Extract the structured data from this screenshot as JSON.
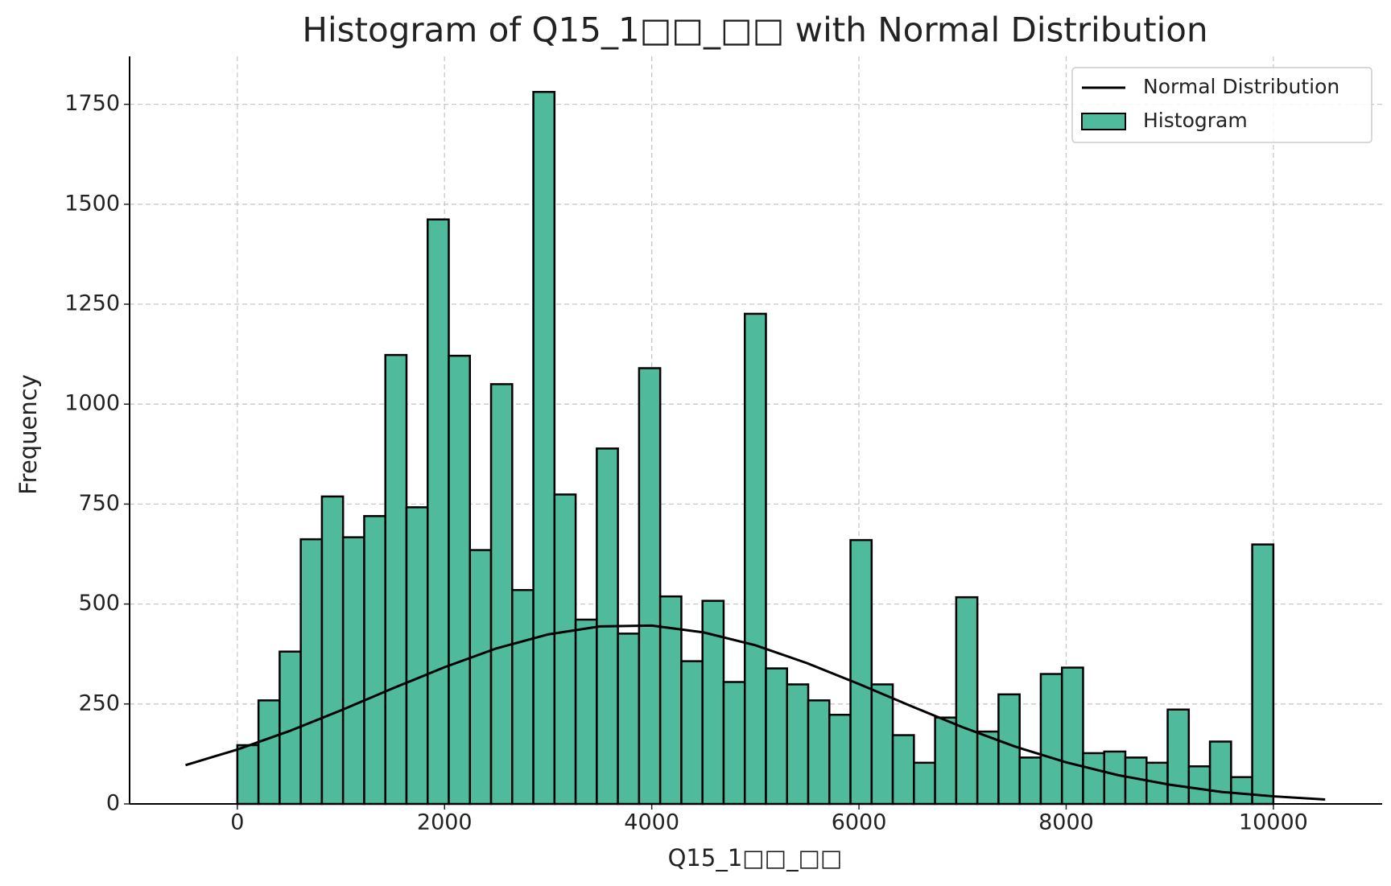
{
  "chart_data": {
    "type": "histogram",
    "title": "Histogram of Q15_1□□_□□ with Normal Distribution",
    "x_label": "Q15_1□□_□□",
    "y_label": "Frequency",
    "xlim": [
      -1040,
      11050
    ],
    "ylim": [
      0,
      1870
    ],
    "xticks": [
      0,
      2000,
      4000,
      6000,
      8000,
      10000
    ],
    "yticks": [
      0,
      250,
      500,
      750,
      1000,
      1250,
      1500,
      1750
    ],
    "grid": true,
    "legend": "upper right",
    "histogram": {
      "name": "Histogram",
      "color": "#4fbb9c",
      "bins": [
        0,
        204.08,
        408.16,
        612.24,
        816.33,
        1020.41,
        1224.49,
        1428.57,
        1632.65,
        1836.73,
        2040.82,
        2244.9,
        2448.98,
        2653.06,
        2857.14,
        3061.22,
        3265.31,
        3469.39,
        3673.47,
        3877.55,
        4081.63,
        4285.71,
        4489.8,
        4693.88,
        4897.96,
        5102.04,
        5306.12,
        5510.2,
        5714.29,
        5918.37,
        6122.45,
        6326.53,
        6530.61,
        6734.69,
        6938.78,
        7142.86,
        7346.94,
        7551.02,
        7755.1,
        7959.18,
        8163.27,
        8367.35,
        8571.43,
        8775.51,
        8979.59,
        9183.67,
        9387.76,
        9591.84,
        9795.92,
        10000
      ],
      "values": [
        147,
        259,
        381,
        662,
        769,
        667,
        720,
        1123,
        742,
        1462,
        1121,
        635,
        1050,
        535,
        1781,
        774,
        461,
        889,
        426,
        1090,
        519,
        357,
        508,
        305,
        1226,
        339,
        299,
        259,
        223,
        660,
        299,
        172,
        103,
        216,
        517,
        181,
        274,
        116,
        325,
        341,
        127,
        131,
        116,
        103,
        236,
        94,
        156,
        67,
        649
      ]
    },
    "line": {
      "name": "Normal Distribution",
      "color": "#000000",
      "x": [
        -500,
        0,
        500,
        1000,
        1500,
        2000,
        2500,
        3000,
        3500,
        4000,
        4500,
        5000,
        5500,
        6000,
        6500,
        7000,
        7500,
        8000,
        8500,
        9000,
        9500,
        10000,
        10500
      ],
      "values": [
        97,
        136,
        182,
        234,
        289,
        342,
        389,
        424,
        444,
        446,
        429,
        397,
        352,
        300,
        245,
        192,
        144,
        104,
        72,
        48,
        30,
        19,
        11
      ]
    }
  }
}
